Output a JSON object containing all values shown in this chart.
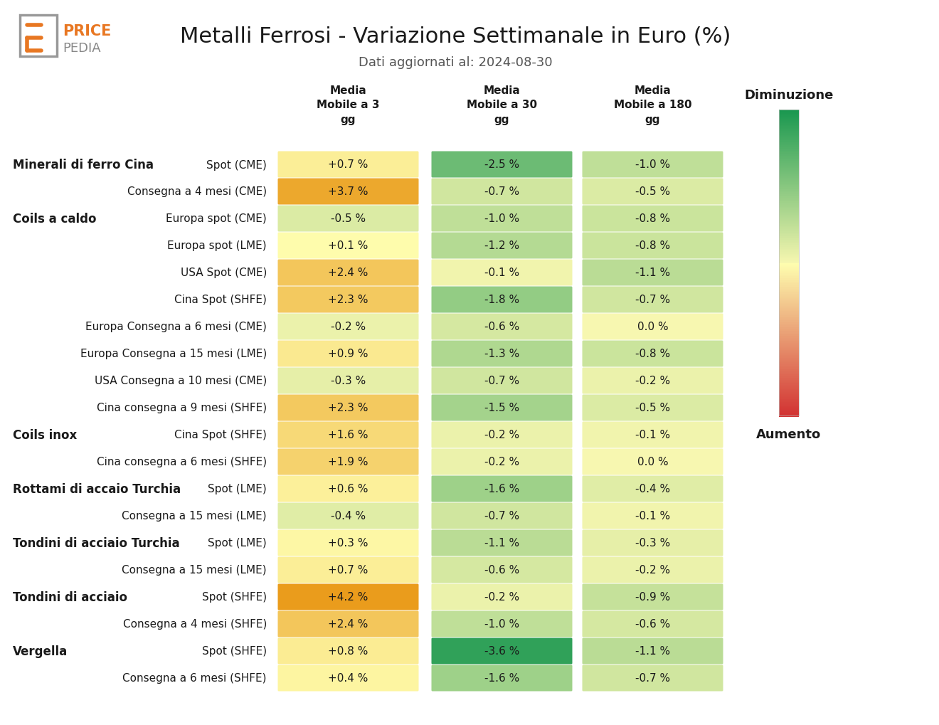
{
  "title": "Metalli Ferrosi - Variazione Settimanale in Euro (%)",
  "subtitle": "Dati aggiornati al: 2024-08-30",
  "col_headers": [
    "Media\nMobile a 3\ngg",
    "Media\nMobile a 30\ngg",
    "Media\nMobile a 180\ngg"
  ],
  "rows": [
    {
      "category": "Minerali di ferro Cina",
      "label": "Spot (CME)",
      "values": [
        0.7,
        -2.5,
        -1.0
      ]
    },
    {
      "category": "",
      "label": "Consegna a 4 mesi (CME)",
      "values": [
        3.7,
        -0.7,
        -0.5
      ]
    },
    {
      "category": "Coils a caldo",
      "label": "Europa spot (CME)",
      "values": [
        -0.5,
        -1.0,
        -0.8
      ]
    },
    {
      "category": "",
      "label": "Europa spot (LME)",
      "values": [
        0.1,
        -1.2,
        -0.8
      ]
    },
    {
      "category": "",
      "label": "USA Spot (CME)",
      "values": [
        2.4,
        -0.1,
        -1.1
      ]
    },
    {
      "category": "",
      "label": "Cina Spot (SHFE)",
      "values": [
        2.3,
        -1.8,
        -0.7
      ]
    },
    {
      "category": "",
      "label": "Europa Consegna a 6 mesi (CME)",
      "values": [
        -0.2,
        -0.6,
        0.0
      ]
    },
    {
      "category": "",
      "label": "Europa Consegna a 15 mesi (LME)",
      "values": [
        0.9,
        -1.3,
        -0.8
      ]
    },
    {
      "category": "",
      "label": "USA Consegna a 10 mesi (CME)",
      "values": [
        -0.3,
        -0.7,
        -0.2
      ]
    },
    {
      "category": "",
      "label": "Cina consegna a 9 mesi (SHFE)",
      "values": [
        2.3,
        -1.5,
        -0.5
      ]
    },
    {
      "category": "Coils inox",
      "label": "Cina Spot (SHFE)",
      "values": [
        1.6,
        -0.2,
        -0.1
      ]
    },
    {
      "category": "",
      "label": "Cina consegna a 6 mesi (SHFE)",
      "values": [
        1.9,
        -0.2,
        0.0
      ]
    },
    {
      "category": "Rottami di accaio Turchia",
      "label": "Spot (LME)",
      "values": [
        0.6,
        -1.6,
        -0.4
      ]
    },
    {
      "category": "",
      "label": "Consegna a 15 mesi (LME)",
      "values": [
        -0.4,
        -0.7,
        -0.1
      ]
    },
    {
      "category": "Tondini di acciaio Turchia",
      "label": "Spot (LME)",
      "values": [
        0.3,
        -1.1,
        -0.3
      ]
    },
    {
      "category": "",
      "label": "Consegna a 15 mesi (LME)",
      "values": [
        0.7,
        -0.6,
        -0.2
      ]
    },
    {
      "category": "Tondini di acciaio",
      "label": "Spot (SHFE)",
      "values": [
        4.2,
        -0.2,
        -0.9
      ]
    },
    {
      "category": "",
      "label": "Consegna a 4 mesi (SHFE)",
      "values": [
        2.4,
        -1.0,
        -0.6
      ]
    },
    {
      "category": "Vergella",
      "label": "Spot (SHFE)",
      "values": [
        0.8,
        -3.6,
        -1.1
      ]
    },
    {
      "category": "",
      "label": "Consegna a 6 mesi (SHFE)",
      "values": [
        0.4,
        -1.6,
        -0.7
      ]
    }
  ],
  "colorbar_label_top": "Diminuzione",
  "colorbar_label_bottom": "Aumento",
  "bg_color": "#ffffff",
  "text_color": "#1a1a1a",
  "title_fontsize": 22,
  "subtitle_fontsize": 13,
  "header_fontsize": 11,
  "cell_fontsize": 11,
  "cat_fontsize": 12,
  "label_fontsize": 11
}
